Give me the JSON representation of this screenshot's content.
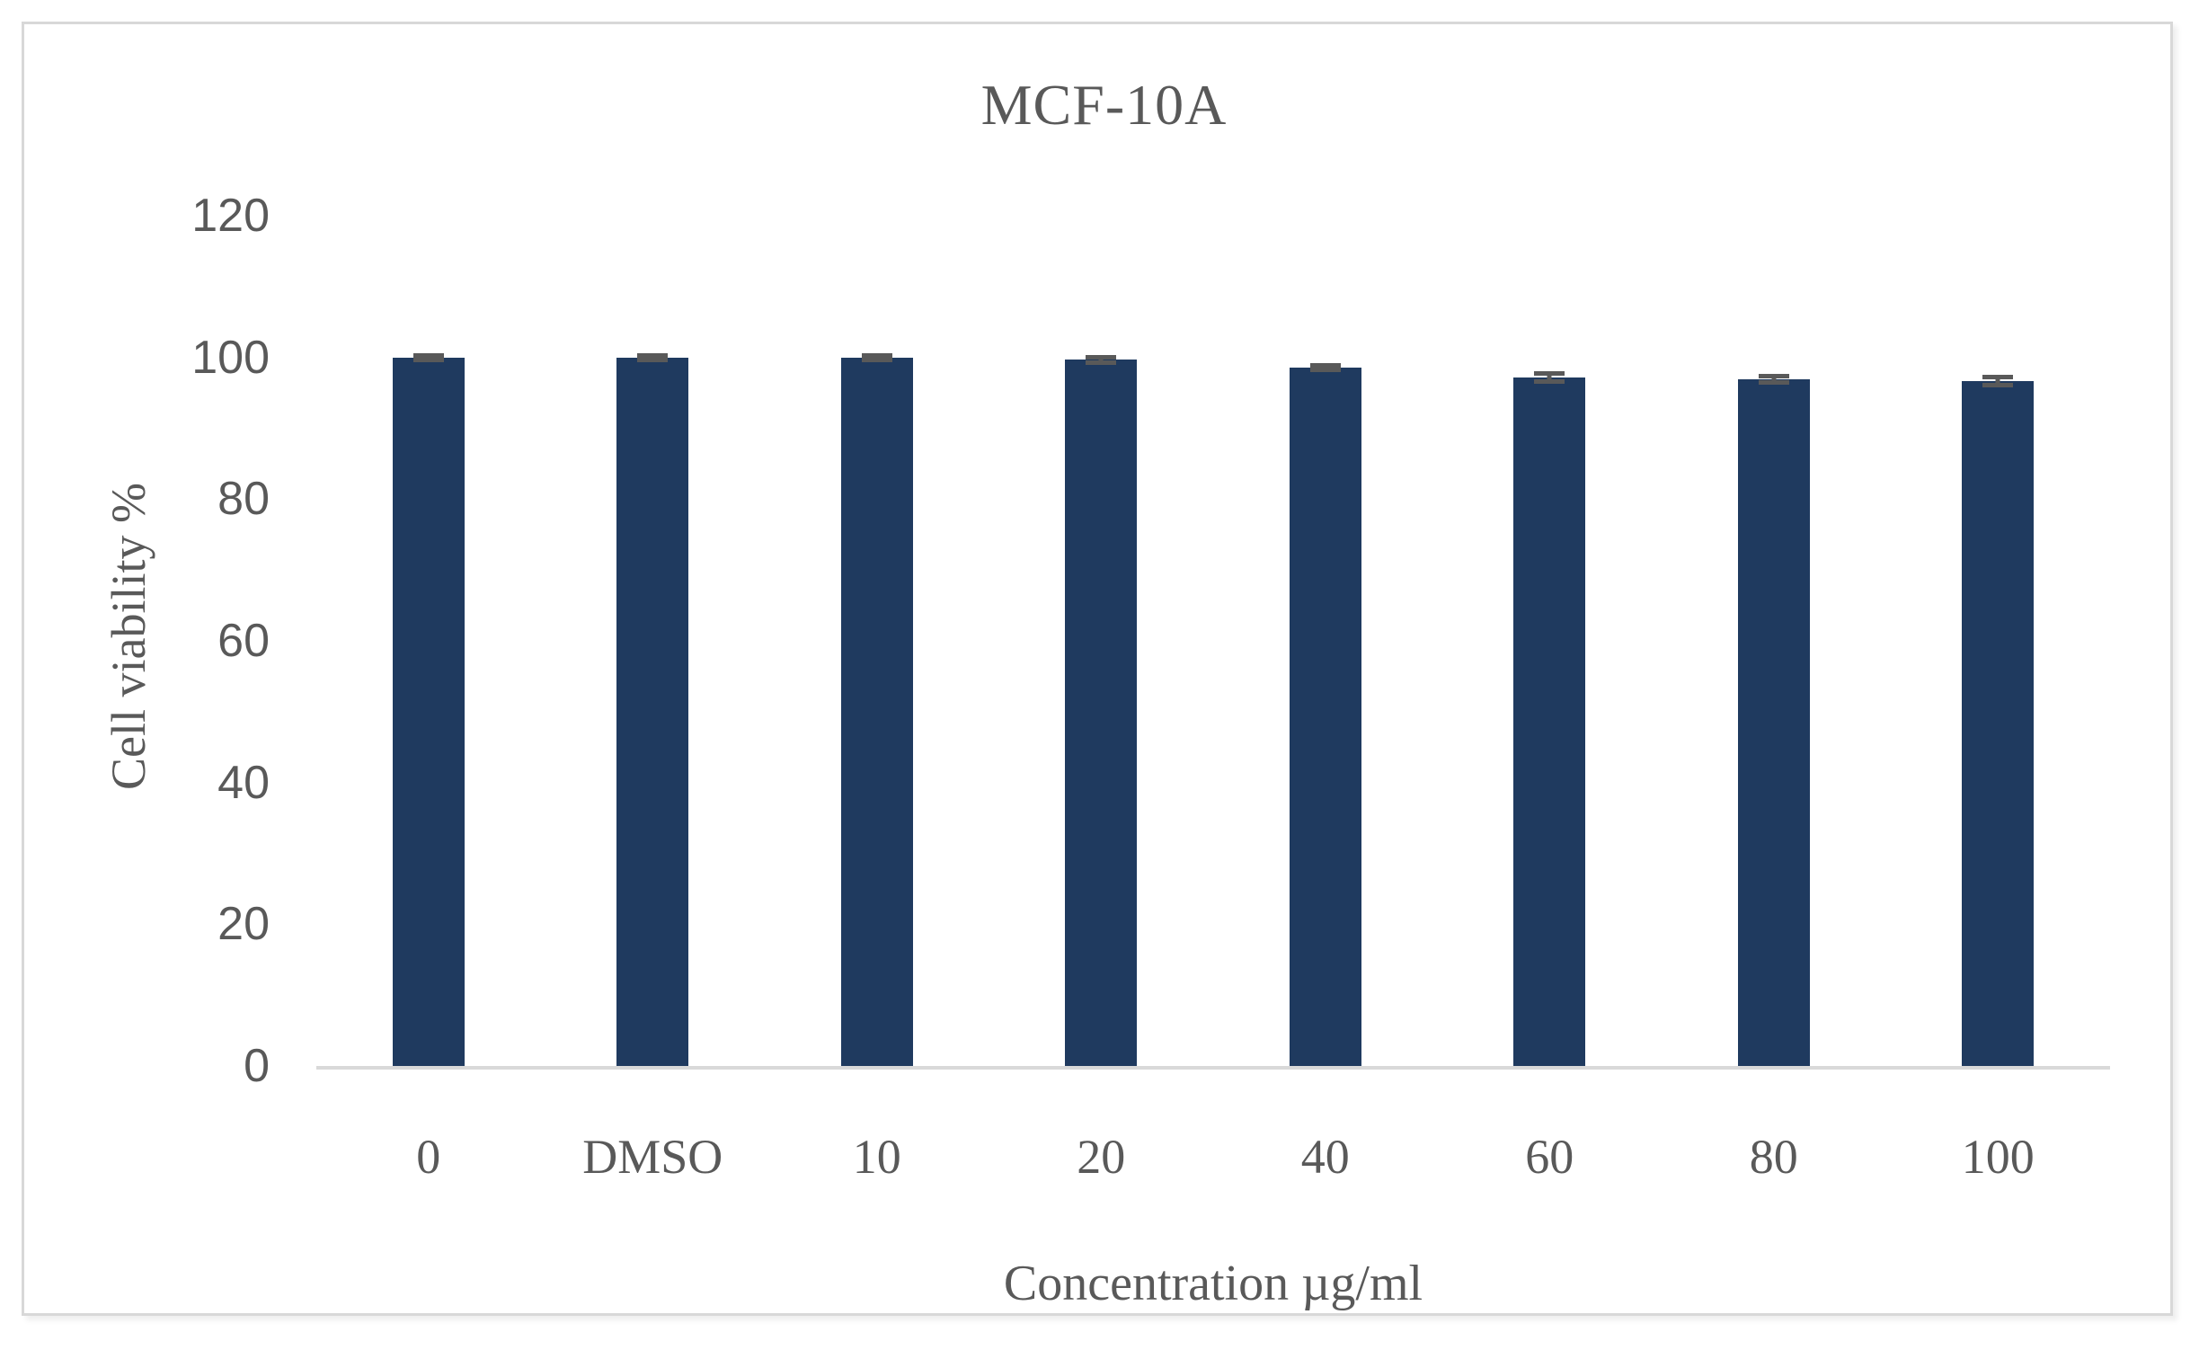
{
  "figure": {
    "title": "MCF-10A"
  },
  "chart_data": {
    "type": "bar",
    "title": "MCF-10A",
    "xlabel": "Concentration µg/ml",
    "ylabel": "Cell viability %",
    "categories": [
      "0",
      "DMSO",
      "10",
      "20",
      "40",
      "60",
      "80",
      "100"
    ],
    "values": [
      100,
      100,
      100,
      99.7,
      98.6,
      97.2,
      96.9,
      96.7
    ],
    "errors": [
      0.4,
      0.3,
      0.4,
      0.7,
      0.4,
      0.9,
      0.8,
      0.9
    ],
    "ylim": [
      0,
      120
    ],
    "yticks": [
      0,
      20,
      40,
      60,
      80,
      100,
      120
    ],
    "grid": false,
    "legend": "none",
    "colors": {
      "bar": "#1f3a5f",
      "error_bar": "#595959",
      "axis_line": "#d9d9d9",
      "text": "#595959",
      "frame_border": "#d8d8d8"
    }
  }
}
